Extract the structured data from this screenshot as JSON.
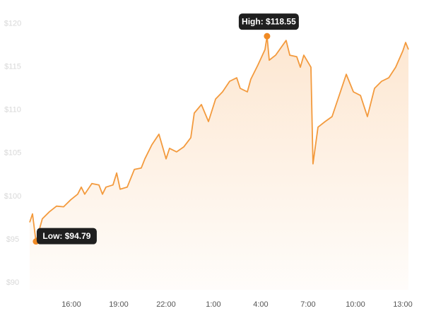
{
  "chart_data": {
    "type": "line",
    "x": [
      13.36,
      13.54,
      13.76,
      14.16,
      14.61,
      15.06,
      15.51,
      15.96,
      16.4,
      16.63,
      16.85,
      17.3,
      17.75,
      17.97,
      18.19,
      18.64,
      18.87,
      19.09,
      19.54,
      19.99,
      20.43,
      20.66,
      21.1,
      21.55,
      22.0,
      22.22,
      22.67,
      23.12,
      23.57,
      23.79,
      24.24,
      24.69,
      25.14,
      25.58,
      26.03,
      26.48,
      26.7,
      27.15,
      27.37,
      27.82,
      28.27,
      28.4,
      28.54,
      28.94,
      29.61,
      29.84,
      30.28,
      30.51,
      30.73,
      31.18,
      31.31,
      31.63,
      32.08,
      32.52,
      32.97,
      33.42,
      33.87,
      34.32,
      34.76,
      35.21,
      35.66,
      36.11,
      36.55,
      37.0,
      37.18,
      37.36
    ],
    "series": [
      {
        "color": "#f39a3d",
        "values": [
          97.0,
          97.98,
          94.79,
          97.41,
          98.22,
          98.88,
          98.8,
          99.61,
          100.26,
          101.08,
          100.26,
          101.49,
          101.33,
          100.26,
          101.08,
          101.33,
          102.71,
          100.84,
          101.08,
          103.12,
          103.29,
          104.35,
          105.98,
          107.2,
          104.35,
          105.57,
          105.16,
          105.73,
          106.8,
          109.65,
          110.63,
          108.67,
          111.28,
          112.1,
          113.33,
          113.73,
          112.51,
          112.1,
          113.57,
          115.2,
          117.0,
          118.55,
          115.77,
          116.35,
          118.06,
          116.35,
          116.18,
          114.96,
          116.35,
          114.96,
          103.77,
          108.02,
          108.67,
          109.24,
          111.69,
          114.14,
          112.1,
          111.69,
          109.24,
          112.51,
          113.33,
          113.73,
          114.96,
          116.84,
          117.82,
          117.0
        ]
      }
    ],
    "xlim": [
      13.36,
      37.36
    ],
    "xticks": [
      {
        "value": 16,
        "label": "16:00"
      },
      {
        "value": 19,
        "label": "19:00"
      },
      {
        "value": 22,
        "label": "22:00"
      },
      {
        "value": 25,
        "label": "1:00"
      },
      {
        "value": 28,
        "label": "4:00"
      },
      {
        "value": 31,
        "label": "7:00"
      },
      {
        "value": 34,
        "label": "10:00"
      },
      {
        "value": 37,
        "label": "13:00"
      }
    ],
    "ylim": [
      89.2,
      121.1
    ],
    "yticks": [
      {
        "value": 90,
        "label": "$90"
      },
      {
        "value": 95,
        "label": "$95"
      },
      {
        "value": 100,
        "label": "$100"
      },
      {
        "value": 105,
        "label": "$105"
      },
      {
        "value": 110,
        "label": "$110"
      },
      {
        "value": 115,
        "label": "$115"
      },
      {
        "value": 120,
        "label": "$120"
      }
    ],
    "high_label": "High: $118.55",
    "low_label": "Low: $94.79",
    "grid": false
  }
}
